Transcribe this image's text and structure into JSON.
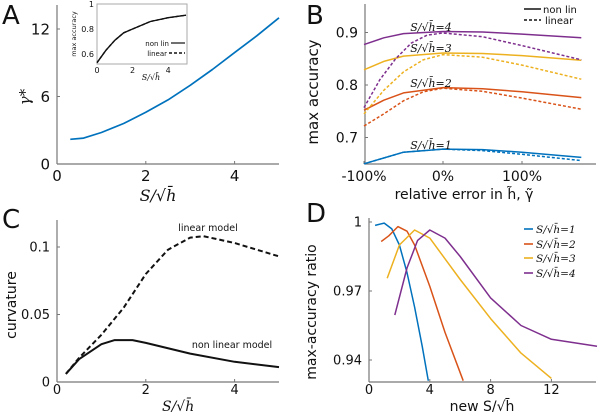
{
  "colors": {
    "s1": "#0072BD",
    "s2": "#D95319",
    "s3": "#EDB120",
    "s4": "#7E2F8E",
    "black": "#111111"
  },
  "chart_data": [
    {
      "panel": "A",
      "type": "line",
      "xlabel": "S/√h̄",
      "ylabel": "γ*",
      "xlim": [
        0,
        5
      ],
      "ylim": [
        0,
        14
      ],
      "xtick_labels": [
        "0",
        "2",
        "4"
      ],
      "xticks": [
        0,
        2,
        4
      ],
      "ytick_labels": [
        "0",
        "6",
        "12"
      ],
      "yticks": [
        0,
        6,
        12
      ],
      "series": [
        {
          "name": "γ*",
          "color": "#0072BD",
          "style": "solid",
          "x": [
            0.3,
            0.6,
            1,
            1.5,
            2,
            2.5,
            3,
            3.5,
            4,
            4.5,
            5
          ],
          "y": [
            2.2,
            2.3,
            2.8,
            3.6,
            4.6,
            5.7,
            7.0,
            8.4,
            9.9,
            11.4,
            13.0
          ]
        }
      ],
      "inset": {
        "type": "line",
        "xlabel": "S/√h̄",
        "ylabel": "max accuracy",
        "xlim": [
          0,
          5
        ],
        "ylim": [
          0.52,
          1
        ],
        "xtick_labels": [
          "0",
          "2",
          "4"
        ],
        "xticks": [
          0,
          2,
          4
        ],
        "ytick_labels": [
          "0.6",
          "0.8",
          "1"
        ],
        "yticks": [
          0.6,
          0.8,
          1
        ],
        "legend": [
          "non lin",
          "linear"
        ],
        "series": [
          {
            "name": "non lin",
            "style": "solid",
            "x": [
              0,
              0.5,
              1,
              1.5,
              2,
              3,
              4,
              5
            ],
            "y": [
              0.53,
              0.63,
              0.71,
              0.77,
              0.8,
              0.86,
              0.89,
              0.91
            ]
          },
          {
            "name": "linear",
            "style": "dashed",
            "x": [
              0,
              0.5,
              1,
              1.5,
              2,
              3,
              4,
              5
            ],
            "y": [
              0.53,
              0.63,
              0.71,
              0.77,
              0.8,
              0.86,
              0.89,
              0.91
            ]
          }
        ]
      }
    },
    {
      "panel": "B",
      "type": "line",
      "xlabel": "relative error in h̃, γ̃",
      "ylabel": "max accuracy",
      "xlim": [
        -100,
        178
      ],
      "ylim": [
        0.65,
        0.93
      ],
      "xtick_labels": [
        "-100%",
        "0%",
        "100%"
      ],
      "xticks": [
        -100,
        0,
        100
      ],
      "ytick_labels": [
        "0.7",
        "0.8",
        "0.9"
      ],
      "yticks": [
        0.7,
        0.8,
        0.9
      ],
      "legend": [
        "non lin",
        "linear"
      ],
      "legend_position": "top-right",
      "series_labels": [
        "S/√h̄=4",
        "S/√h̄=3",
        "S/√h̄=2",
        "S/√h̄=1"
      ],
      "series": [
        {
          "name": "S/√h̄=1 non lin",
          "color": "#0072BD",
          "style": "solid",
          "x": [
            -100,
            -50,
            0,
            50,
            100,
            175
          ],
          "y": [
            0.65,
            0.672,
            0.678,
            0.677,
            0.672,
            0.662
          ]
        },
        {
          "name": "S/√h̄=1 linear",
          "color": "#0072BD",
          "style": "dashed",
          "x": [
            -100,
            -50,
            0,
            50,
            100,
            175
          ],
          "y": [
            0.65,
            0.672,
            0.678,
            0.675,
            0.668,
            0.656
          ]
        },
        {
          "name": "S/√h̄=2 non lin",
          "color": "#D95319",
          "style": "solid",
          "x": [
            -100,
            -75,
            -50,
            0,
            50,
            100,
            175
          ],
          "y": [
            0.752,
            0.771,
            0.785,
            0.795,
            0.793,
            0.787,
            0.776
          ]
        },
        {
          "name": "S/√h̄=2 linear",
          "color": "#D95319",
          "style": "dashed",
          "x": [
            -100,
            -75,
            -50,
            -25,
            0,
            50,
            100,
            175
          ],
          "y": [
            0.722,
            0.745,
            0.77,
            0.787,
            0.794,
            0.788,
            0.775,
            0.754
          ]
        },
        {
          "name": "S/√h̄=3 non lin",
          "color": "#EDB120",
          "style": "solid",
          "x": [
            -100,
            -75,
            -50,
            0,
            50,
            100,
            175
          ],
          "y": [
            0.829,
            0.845,
            0.855,
            0.861,
            0.86,
            0.856,
            0.847
          ]
        },
        {
          "name": "S/√h̄=3 linear",
          "color": "#EDB120",
          "style": "dashed",
          "x": [
            -100,
            -75,
            -50,
            -25,
            0,
            50,
            100,
            175
          ],
          "y": [
            0.745,
            0.79,
            0.825,
            0.848,
            0.858,
            0.853,
            0.838,
            0.811
          ]
        },
        {
          "name": "S/√h̄=4 non lin",
          "color": "#7E2F8E",
          "style": "solid",
          "x": [
            -100,
            -75,
            -50,
            0,
            50,
            100,
            175
          ],
          "y": [
            0.877,
            0.89,
            0.898,
            0.902,
            0.901,
            0.897,
            0.89
          ]
        },
        {
          "name": "S/√h̄=4 linear",
          "color": "#7E2F8E",
          "style": "dashed",
          "x": [
            -100,
            -80,
            -60,
            -40,
            -20,
            0,
            50,
            100,
            175
          ],
          "y": [
            0.757,
            0.81,
            0.85,
            0.88,
            0.895,
            0.899,
            0.892,
            0.875,
            0.848
          ]
        }
      ]
    },
    {
      "panel": "C",
      "type": "line",
      "xlabel": "S/√h̄",
      "ylabel": "curvature",
      "xlim": [
        0,
        5
      ],
      "ylim": [
        0,
        0.12
      ],
      "xtick_labels": [
        "0",
        "2",
        "4"
      ],
      "xticks": [
        0,
        2,
        4
      ],
      "ytick_labels": [
        "0",
        "0.05",
        "0.1"
      ],
      "yticks": [
        0,
        0.05,
        0.1
      ],
      "annotations": [
        "linear model",
        "non linear model"
      ],
      "series": [
        {
          "name": "linear model",
          "style": "dashed",
          "x": [
            0.2,
            0.5,
            1,
            1.5,
            2,
            2.5,
            3,
            3.3,
            4,
            5
          ],
          "y": [
            0.006,
            0.018,
            0.035,
            0.055,
            0.08,
            0.098,
            0.107,
            0.108,
            0.103,
            0.093
          ]
        },
        {
          "name": "non linear model",
          "style": "solid",
          "x": [
            0.2,
            0.5,
            1,
            1.3,
            1.7,
            2,
            3,
            4,
            5
          ],
          "y": [
            0.006,
            0.017,
            0.028,
            0.031,
            0.031,
            0.029,
            0.021,
            0.015,
            0.011
          ]
        }
      ]
    },
    {
      "panel": "D",
      "type": "line",
      "xlabel": "new S/√h̄",
      "ylabel": "max-accuracy ratio",
      "xlim": [
        0,
        15
      ],
      "ylim": [
        0.9305,
        1.001
      ],
      "xtick_labels": [
        "0",
        "4",
        "8",
        "12"
      ],
      "xticks": [
        0,
        4,
        8,
        12
      ],
      "ytick_labels": [
        "0.94",
        "0.97",
        "1"
      ],
      "yticks": [
        0.94,
        0.97,
        1
      ],
      "legend": [
        "S/√h̄=1",
        "S/√h̄=2",
        "S/√h̄=3",
        "S/√h̄=4"
      ],
      "legend_position": "top-right",
      "series": [
        {
          "name": "S/√h̄=1",
          "color": "#0072BD",
          "x": [
            0.4,
            1,
            1.5,
            2,
            2.5,
            3,
            3.5,
            3.9
          ],
          "y": [
            0.9985,
            0.9995,
            0.997,
            0.99,
            0.978,
            0.963,
            0.946,
            0.931
          ]
        },
        {
          "name": "S/√h̄=2",
          "color": "#D95319",
          "x": [
            0.8,
            1.3,
            1.9,
            2.5,
            3,
            4,
            5,
            6.2
          ],
          "y": [
            0.9915,
            0.994,
            0.998,
            0.996,
            0.99,
            0.972,
            0.952,
            0.931
          ]
        },
        {
          "name": "S/√h̄=3",
          "color": "#EDB120",
          "x": [
            1.2,
            2,
            3,
            4,
            5,
            6,
            8,
            10,
            12
          ],
          "y": [
            0.9755,
            0.99,
            0.9965,
            0.993,
            0.984,
            0.975,
            0.958,
            0.943,
            0.932
          ]
        },
        {
          "name": "S/√h̄=4",
          "color": "#7E2F8E",
          "x": [
            1.7,
            2.5,
            3.2,
            4,
            5,
            6,
            8,
            10,
            12,
            15
          ],
          "y": [
            0.9595,
            0.98,
            0.992,
            0.9965,
            0.993,
            0.985,
            0.967,
            0.955,
            0.949,
            0.946
          ]
        }
      ]
    }
  ],
  "panel_letters": [
    "A",
    "B",
    "C",
    "D"
  ]
}
